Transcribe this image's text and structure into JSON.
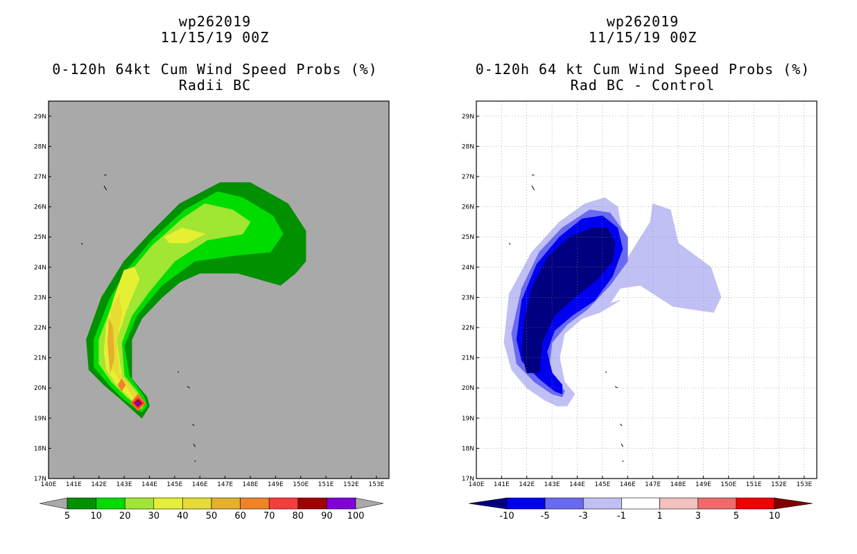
{
  "chart_data": [
    {
      "type": "contour-map",
      "title": [
        "wp262019",
        "11/15/19 00Z",
        "0-120h 64kt Cum Wind Speed Probs (%)",
        "Radii BC"
      ],
      "xlim": [
        140,
        153.5
      ],
      "ylim": [
        17,
        29.5
      ],
      "x_ticks": [
        "140E",
        "141E",
        "142E",
        "143E",
        "144E",
        "145E",
        "146E",
        "147E",
        "148E",
        "149E",
        "150E",
        "151E",
        "152E",
        "153E"
      ],
      "y_ticks": [
        "17N",
        "18N",
        "19N",
        "20N",
        "21N",
        "22N",
        "23N",
        "24N",
        "25N",
        "26N",
        "27N",
        "28N",
        "29N"
      ],
      "background": "#a9a9a9",
      "levels": [
        "5",
        "10",
        "20",
        "30",
        "40",
        "50",
        "60",
        "70",
        "80",
        "90",
        "100"
      ],
      "level_colors": [
        "#009000",
        "#00dc00",
        "#a0e632",
        "#e6f032",
        "#e6dc32",
        "#e6af2d",
        "#f08228",
        "#fa3c3c",
        "#a00000",
        "#8200dc"
      ],
      "contours": [
        {
          "level": 5,
          "color": "#009000",
          "points": [
            [
              143.7,
              19.0
            ],
            [
              144.0,
              19.4
            ],
            [
              143.9,
              19.7
            ],
            [
              143.3,
              20.3
            ],
            [
              143.3,
              21.6
            ],
            [
              143.7,
              22.3
            ],
            [
              144.5,
              23.0
            ],
            [
              145.2,
              23.5
            ],
            [
              146.0,
              23.8
            ],
            [
              147.5,
              23.8
            ],
            [
              149.2,
              23.4
            ],
            [
              149.8,
              23.8
            ],
            [
              150.2,
              24.2
            ],
            [
              150.2,
              25.2
            ],
            [
              149.5,
              26.1
            ],
            [
              148.0,
              26.8
            ],
            [
              146.8,
              26.8
            ],
            [
              145.2,
              26.1
            ],
            [
              144.0,
              25.1
            ],
            [
              143.0,
              24.2
            ],
            [
              142.1,
              23.0
            ],
            [
              141.5,
              21.6
            ],
            [
              141.6,
              20.6
            ],
            [
              142.2,
              20.1
            ],
            [
              142.9,
              19.6
            ]
          ]
        },
        {
          "level": 10,
          "color": "#00dc00",
          "points": [
            [
              143.7,
              19.2
            ],
            [
              143.9,
              19.4
            ],
            [
              143.8,
              19.7
            ],
            [
              143.2,
              20.4
            ],
            [
              143.0,
              21.4
            ],
            [
              143.5,
              22.4
            ],
            [
              144.5,
              23.4
            ],
            [
              145.8,
              24.2
            ],
            [
              147.5,
              24.4
            ],
            [
              148.8,
              24.5
            ],
            [
              149.3,
              25.1
            ],
            [
              148.9,
              25.7
            ],
            [
              147.7,
              26.3
            ],
            [
              146.7,
              26.5
            ],
            [
              145.4,
              25.9
            ],
            [
              144.1,
              24.9
            ],
            [
              143.1,
              23.9
            ],
            [
              142.4,
              22.9
            ],
            [
              141.8,
              21.6
            ],
            [
              141.8,
              20.7
            ],
            [
              142.4,
              20.1
            ],
            [
              143.0,
              19.6
            ]
          ]
        },
        {
          "level": 20,
          "color": "#a0e632",
          "points": [
            [
              143.7,
              19.3
            ],
            [
              143.8,
              19.5
            ],
            [
              143.5,
              19.9
            ],
            [
              143.0,
              20.4
            ],
            [
              142.9,
              21.5
            ],
            [
              143.3,
              22.4
            ],
            [
              144.0,
              23.2
            ],
            [
              145.0,
              24.2
            ],
            [
              146.3,
              24.9
            ],
            [
              147.7,
              25.1
            ],
            [
              148.0,
              25.5
            ],
            [
              147.3,
              25.9
            ],
            [
              146.2,
              26.1
            ],
            [
              145.3,
              25.6
            ],
            [
              144.1,
              24.7
            ],
            [
              143.1,
              23.7
            ],
            [
              142.5,
              22.7
            ],
            [
              142.0,
              21.6
            ],
            [
              142.0,
              20.8
            ],
            [
              142.5,
              20.2
            ],
            [
              143.1,
              19.7
            ]
          ]
        },
        {
          "level": 30,
          "color": "#e6f032",
          "points": [
            [
              143.6,
              19.3
            ],
            [
              143.7,
              19.6
            ],
            [
              143.3,
              20.0
            ],
            [
              142.9,
              20.4
            ],
            [
              142.7,
              21.6
            ],
            [
              143.1,
              22.6
            ],
            [
              143.6,
              23.6
            ],
            [
              143.4,
              24.0
            ],
            [
              143.0,
              23.9
            ],
            [
              142.6,
              23.0
            ],
            [
              142.3,
              22.1
            ],
            [
              142.2,
              21.2
            ],
            [
              142.3,
              20.6
            ],
            [
              142.7,
              20.1
            ],
            [
              143.2,
              19.7
            ]
          ]
        },
        {
          "level": 30,
          "color": "#e6f032",
          "points": [
            [
              144.6,
              25.0
            ],
            [
              145.3,
              25.3
            ],
            [
              146.2,
              25.1
            ],
            [
              145.5,
              24.8
            ],
            [
              144.8,
              24.8
            ]
          ]
        },
        {
          "level": 40,
          "color": "#e6dc32",
          "points": [
            [
              143.5,
              19.5
            ],
            [
              143.6,
              19.7
            ],
            [
              143.2,
              20.1
            ],
            [
              142.8,
              20.5
            ],
            [
              142.7,
              21.5
            ],
            [
              142.9,
              22.5
            ],
            [
              142.8,
              23.1
            ],
            [
              142.5,
              22.6
            ],
            [
              142.4,
              21.6
            ],
            [
              142.5,
              20.7
            ],
            [
              142.9,
              20.2
            ],
            [
              143.3,
              19.8
            ]
          ]
        },
        {
          "level": 50,
          "color": "#e6af2d",
          "points": [
            [
              142.45,
              20.5
            ],
            [
              142.6,
              21.0
            ],
            [
              142.55,
              22.0
            ],
            [
              142.4,
              22.3
            ],
            [
              142.35,
              21.5
            ]
          ]
        },
        {
          "level": 60,
          "color": "#f08228",
          "points": [
            [
              142.9,
              19.9
            ],
            [
              143.05,
              20.1
            ],
            [
              142.9,
              20.3
            ],
            [
              142.75,
              20.1
            ]
          ]
        },
        {
          "level": 60,
          "color": "#f08228",
          "points": [
            [
              143.55,
              19.25
            ],
            [
              143.85,
              19.5
            ],
            [
              143.55,
              19.8
            ],
            [
              143.25,
              19.5
            ]
          ]
        },
        {
          "level": 70,
          "color": "#fa3c3c",
          "points": [
            [
              143.55,
              19.3
            ],
            [
              143.8,
              19.5
            ],
            [
              143.55,
              19.7
            ],
            [
              143.3,
              19.5
            ]
          ]
        },
        {
          "level": 80,
          "color": "#a00000",
          "points": [
            [
              143.55,
              19.38
            ],
            [
              143.7,
              19.5
            ],
            [
              143.55,
              19.62
            ],
            [
              143.4,
              19.5
            ]
          ]
        },
        {
          "level": 90,
          "color": "#8200dc",
          "points": [
            [
              143.55,
              19.43
            ],
            [
              143.63,
              19.5
            ],
            [
              143.55,
              19.57
            ],
            [
              143.47,
              19.5
            ]
          ]
        }
      ]
    },
    {
      "type": "contour-map",
      "title": [
        "wp262019",
        "11/15/19 00Z",
        "0-120h 64 kt Cum Wind Speed Probs (%)",
        "Rad BC - Control"
      ],
      "xlim": [
        140,
        153.5
      ],
      "ylim": [
        17,
        29.5
      ],
      "x_ticks": [
        "140E",
        "141E",
        "142E",
        "143E",
        "144E",
        "145E",
        "146E",
        "147E",
        "148E",
        "149E",
        "150E",
        "151E",
        "152E",
        "153E"
      ],
      "y_ticks": [
        "17N",
        "18N",
        "19N",
        "20N",
        "21N",
        "22N",
        "23N",
        "24N",
        "25N",
        "26N",
        "27N",
        "28N",
        "29N"
      ],
      "background": "#ffffff",
      "grid": true,
      "levels": [
        "-10",
        "-5",
        "-3",
        "-1",
        "1",
        "3",
        "5",
        "10"
      ],
      "level_colors": [
        "#000080",
        "#0000f0",
        "#6a6af0",
        "#c0c0f5",
        "#ffffff",
        "#f5c0c0",
        "#f06a6a",
        "#f00000",
        "#800000"
      ],
      "contours": [
        {
          "level": -1,
          "color": "#c0c0f5",
          "points": [
            [
              143.6,
              19.4
            ],
            [
              143.9,
              19.8
            ],
            [
              143.5,
              20.2
            ],
            [
              143.3,
              21.0
            ],
            [
              143.5,
              21.8
            ],
            [
              144.2,
              22.3
            ],
            [
              144.9,
              22.5
            ],
            [
              145.7,
              22.9
            ],
            [
              145.3,
              22.8
            ],
            [
              145.7,
              23.3
            ],
            [
              146.5,
              23.4
            ],
            [
              147.8,
              22.7
            ],
            [
              149.4,
              22.5
            ],
            [
              149.7,
              23.0
            ],
            [
              149.3,
              24.0
            ],
            [
              148.0,
              24.8
            ],
            [
              147.7,
              25.9
            ],
            [
              147.0,
              26.1
            ],
            [
              146.9,
              25.5
            ],
            [
              146.0,
              24.3
            ],
            [
              145.8,
              25.1
            ],
            [
              145.6,
              26.0
            ],
            [
              145.1,
              26.3
            ],
            [
              144.3,
              26.1
            ],
            [
              143.3,
              25.5
            ],
            [
              142.2,
              24.5
            ],
            [
              141.3,
              23.1
            ],
            [
              141.1,
              21.5
            ],
            [
              141.4,
              20.6
            ],
            [
              142.0,
              20.0
            ],
            [
              142.7,
              19.6
            ],
            [
              143.2,
              19.4
            ]
          ]
        },
        {
          "level": -3,
          "color": "#6a6af0",
          "points": [
            [
              143.4,
              19.7
            ],
            [
              143.5,
              19.9
            ],
            [
              143.1,
              20.3
            ],
            [
              142.9,
              20.8
            ],
            [
              143.0,
              21.5
            ],
            [
              143.6,
              22.1
            ],
            [
              144.4,
              22.6
            ],
            [
              145.3,
              23.4
            ],
            [
              146.0,
              24.2
            ],
            [
              146.0,
              25.0
            ],
            [
              145.3,
              25.8
            ],
            [
              144.5,
              25.9
            ],
            [
              143.4,
              25.3
            ],
            [
              142.5,
              24.5
            ],
            [
              141.8,
              23.3
            ],
            [
              141.4,
              21.8
            ],
            [
              141.6,
              20.8
            ],
            [
              142.3,
              20.2
            ],
            [
              143.0,
              19.8
            ]
          ]
        },
        {
          "level": -5,
          "color": "#0000f0",
          "points": [
            [
              143.4,
              19.8
            ],
            [
              143.4,
              20.1
            ],
            [
              143.0,
              20.5
            ],
            [
              142.8,
              21.2
            ],
            [
              143.1,
              21.9
            ],
            [
              143.8,
              22.4
            ],
            [
              144.7,
              22.9
            ],
            [
              145.4,
              23.7
            ],
            [
              145.8,
              24.6
            ],
            [
              145.6,
              25.3
            ],
            [
              145.0,
              25.7
            ],
            [
              144.2,
              25.6
            ],
            [
              143.3,
              25.0
            ],
            [
              142.4,
              24.1
            ],
            [
              141.8,
              22.9
            ],
            [
              141.6,
              21.6
            ],
            [
              141.8,
              20.9
            ],
            [
              142.5,
              20.3
            ],
            [
              143.1,
              19.9
            ]
          ]
        },
        {
          "level": -10,
          "color": "#000080",
          "points": [
            [
              142.0,
              20.5
            ],
            [
              142.5,
              20.5
            ],
            [
              142.6,
              21.5
            ],
            [
              143.1,
              22.4
            ],
            [
              143.9,
              23.0
            ],
            [
              144.8,
              23.6
            ],
            [
              145.4,
              24.2
            ],
            [
              145.5,
              24.8
            ],
            [
              145.2,
              25.3
            ],
            [
              144.6,
              25.3
            ],
            [
              143.7,
              25.0
            ],
            [
              142.8,
              24.3
            ],
            [
              142.2,
              23.3
            ],
            [
              141.9,
              22.2
            ],
            [
              141.8,
              21.2
            ]
          ]
        }
      ]
    }
  ],
  "land": [
    [
      [
        142.2,
        27.05
      ],
      [
        142.3,
        27.05
      ]
    ],
    [
      [
        142.2,
        26.7
      ],
      [
        142.3,
        26.55
      ]
    ],
    [
      [
        141.3,
        24.8
      ],
      [
        141.35,
        24.75
      ]
    ],
    [
      [
        145.13,
        20.55
      ],
      [
        145.15,
        20.5
      ]
    ],
    [
      [
        145.5,
        20.05
      ],
      [
        145.6,
        20.0
      ]
    ],
    [
      [
        145.7,
        18.8
      ],
      [
        145.78,
        18.75
      ]
    ],
    [
      [
        145.75,
        18.15
      ],
      [
        145.82,
        18.05
      ]
    ],
    [
      [
        145.8,
        17.6
      ],
      [
        145.82,
        17.55
      ]
    ]
  ]
}
